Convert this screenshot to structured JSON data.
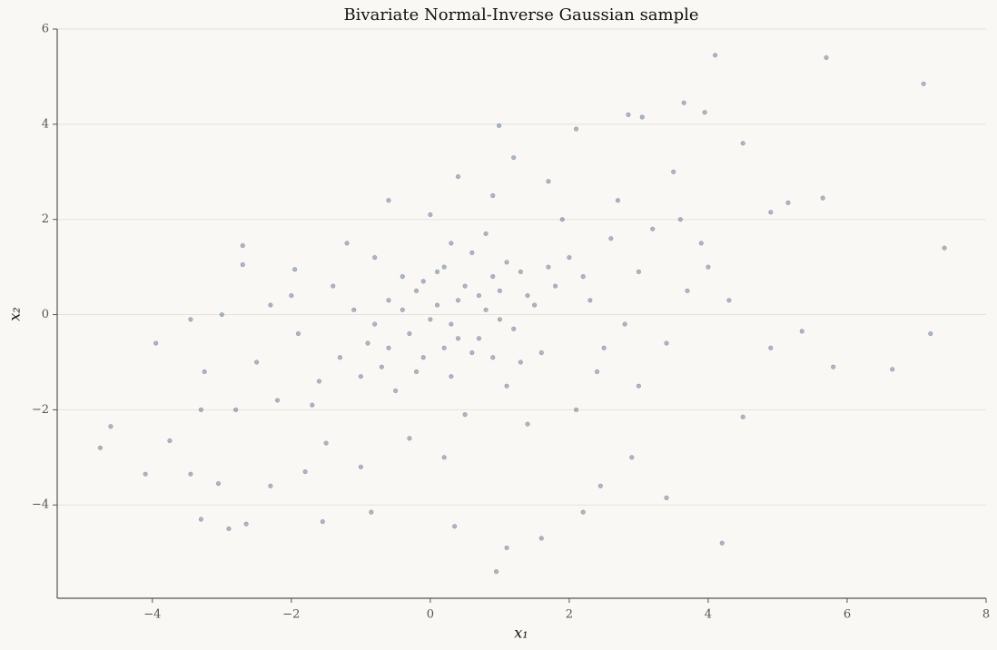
{
  "chart_data": {
    "type": "scatter",
    "title": "Bivariate Normal-Inverse Gaussian sample",
    "xlabel": "x₁",
    "ylabel": "x₂",
    "color": "#1f3a60",
    "grid": true,
    "xlim": [
      -5.37,
      8
    ],
    "ylim": [
      -5.96,
      6
    ],
    "xticks": [
      {
        "value": -4,
        "label": "−4"
      },
      {
        "value": -2,
        "label": "−2"
      },
      0,
      2,
      4,
      6,
      8
    ],
    "yticks": [
      {
        "value": -4,
        "label": "−4"
      },
      {
        "value": -2,
        "label": "−2"
      },
      0,
      2,
      4,
      6
    ],
    "x": [
      -4.75,
      -4.6,
      -4.1,
      -3.95,
      -3.75,
      -3.45,
      -3.45,
      -3.3,
      -3.25,
      -3.05,
      -3.0,
      -2.9,
      -2.7,
      -2.7,
      -2.65,
      -1.55,
      0.95,
      1.1,
      1.6,
      4.1,
      5.7,
      7.1,
      7.4,
      7.2,
      6.65,
      5.8,
      4.2,
      3.4,
      3.65,
      3.95,
      2.85,
      3.05,
      2.1,
      0.99,
      5.35,
      5.15,
      4.9,
      5.65,
      3.5,
      4.5,
      -1.95,
      -2.3,
      -0.85,
      0.35,
      2.2,
      2.45,
      4.9,
      4.5,
      3.9,
      4.3,
      0.1,
      -0.3,
      0.5,
      0.8,
      -0.1,
      0.3,
      1.0,
      -0.6,
      0.2,
      0.7,
      1.3,
      -0.9,
      1.5,
      -0.4,
      0.0,
      0.4,
      0.9,
      -0.2,
      1.2,
      -0.7,
      0.6,
      1.8,
      -1.1,
      0.3,
      2.0,
      -1.3,
      1.6,
      -0.5,
      0.8,
      2.3,
      -1.6,
      1.1,
      -0.8,
      2.6,
      -1.9,
      0.5,
      1.9,
      -1.2,
      2.8,
      -2.2,
      0.0,
      1.4,
      -0.3,
      2.4,
      3.0,
      -2.5,
      0.9,
      3.2,
      -1.5,
      1.7,
      -2.0,
      2.1,
      0.2,
      3.4,
      -1.0,
      2.7,
      -2.8,
      1.2,
      3.7,
      -0.6,
      0.6,
      -0.1,
      1.0,
      0.4,
      -0.4,
      0.7,
      0.2,
      1.4,
      -0.8,
      0.1,
      1.1,
      -0.2,
      0.9,
      -1.0,
      1.7,
      -1.4,
      2.2,
      0.3,
      -0.6,
      1.3,
      2.5,
      -1.7,
      3.0,
      -2.3,
      4.0,
      -3.3,
      2.9,
      -1.8,
      3.6,
      0.4
    ],
    "values": [
      -2.8,
      -2.35,
      -3.35,
      -0.6,
      -2.65,
      -3.35,
      -0.1,
      -4.3,
      -1.2,
      -3.55,
      0.0,
      -4.5,
      1.45,
      1.05,
      -4.4,
      -4.35,
      -5.4,
      -4.9,
      -4.7,
      5.45,
      5.4,
      4.85,
      1.4,
      -0.4,
      -1.15,
      -1.1,
      -4.8,
      -3.85,
      4.45,
      4.25,
      4.2,
      4.15,
      3.9,
      3.97,
      -0.35,
      2.35,
      2.15,
      2.45,
      3.0,
      3.6,
      0.95,
      -3.6,
      -4.15,
      -4.45,
      -4.15,
      -3.6,
      -0.7,
      -2.15,
      1.5,
      0.3,
      0.2,
      -0.4,
      0.6,
      0.1,
      -0.9,
      -0.2,
      0.5,
      0.3,
      1.0,
      -0.5,
      0.9,
      -0.6,
      0.2,
      0.8,
      -0.1,
      0.3,
      0.8,
      0.5,
      -0.3,
      -1.1,
      1.3,
      0.6,
      0.1,
      -1.3,
      1.2,
      -0.9,
      -0.8,
      -1.6,
      1.7,
      0.3,
      -1.4,
      -1.5,
      1.2,
      1.6,
      -0.4,
      -2.1,
      2.0,
      1.5,
      -0.2,
      -1.8,
      2.1,
      -2.3,
      -2.6,
      -1.2,
      0.9,
      -1.0,
      2.5,
      1.8,
      -2.7,
      2.8,
      0.4,
      -2.0,
      -3.0,
      -0.6,
      -3.2,
      2.4,
      -2.0,
      3.3,
      0.5,
      2.4,
      -0.8,
      0.7,
      -0.1,
      -0.5,
      0.1,
      0.4,
      -0.7,
      0.4,
      -0.2,
      0.9,
      1.1,
      -1.2,
      -0.9,
      -1.3,
      1.0,
      0.6,
      0.8,
      1.5,
      -0.7,
      -1.0,
      -0.7,
      -1.9,
      -1.5,
      0.2,
      1.0,
      -2.0,
      -3.0,
      -3.3,
      2.0,
      2.9
    ]
  }
}
